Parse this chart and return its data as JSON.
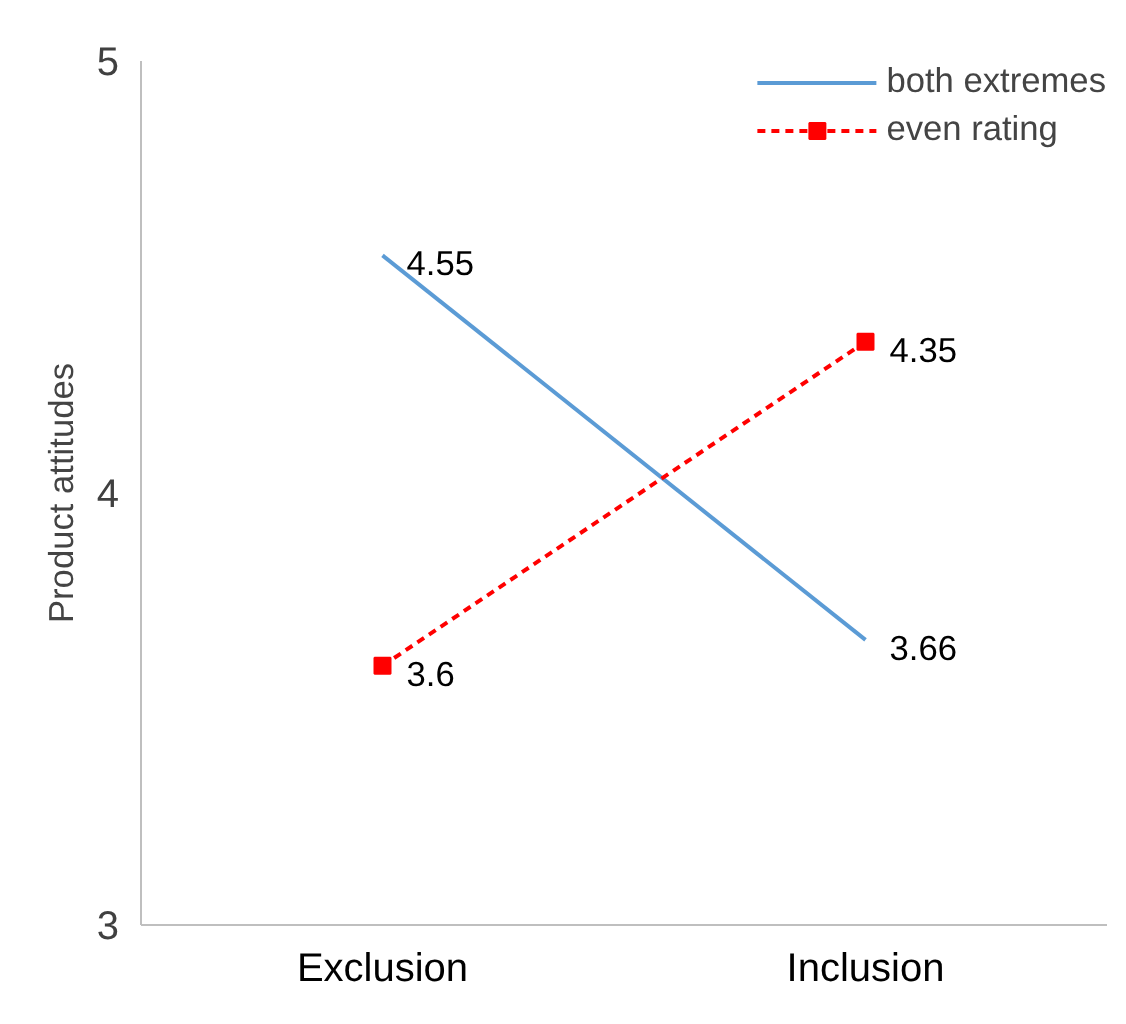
{
  "chart_data": {
    "type": "line",
    "ylabel": "Product attitudes",
    "categories": [
      "Exclusion",
      "Inclusion"
    ],
    "series": [
      {
        "name": "both extremes",
        "color": "#5b9bd5",
        "values": [
          4.55,
          3.66
        ],
        "marker": "none",
        "line_style": "solid"
      },
      {
        "name": "even rating",
        "color": "#ff0000",
        "values": [
          3.6,
          4.35
        ],
        "marker": "square",
        "line_style": "dashed"
      }
    ],
    "ylim": [
      3,
      5
    ],
    "yticks": [
      3,
      4,
      5
    ],
    "grid": false,
    "legend": "top right",
    "data_labels": true
  }
}
